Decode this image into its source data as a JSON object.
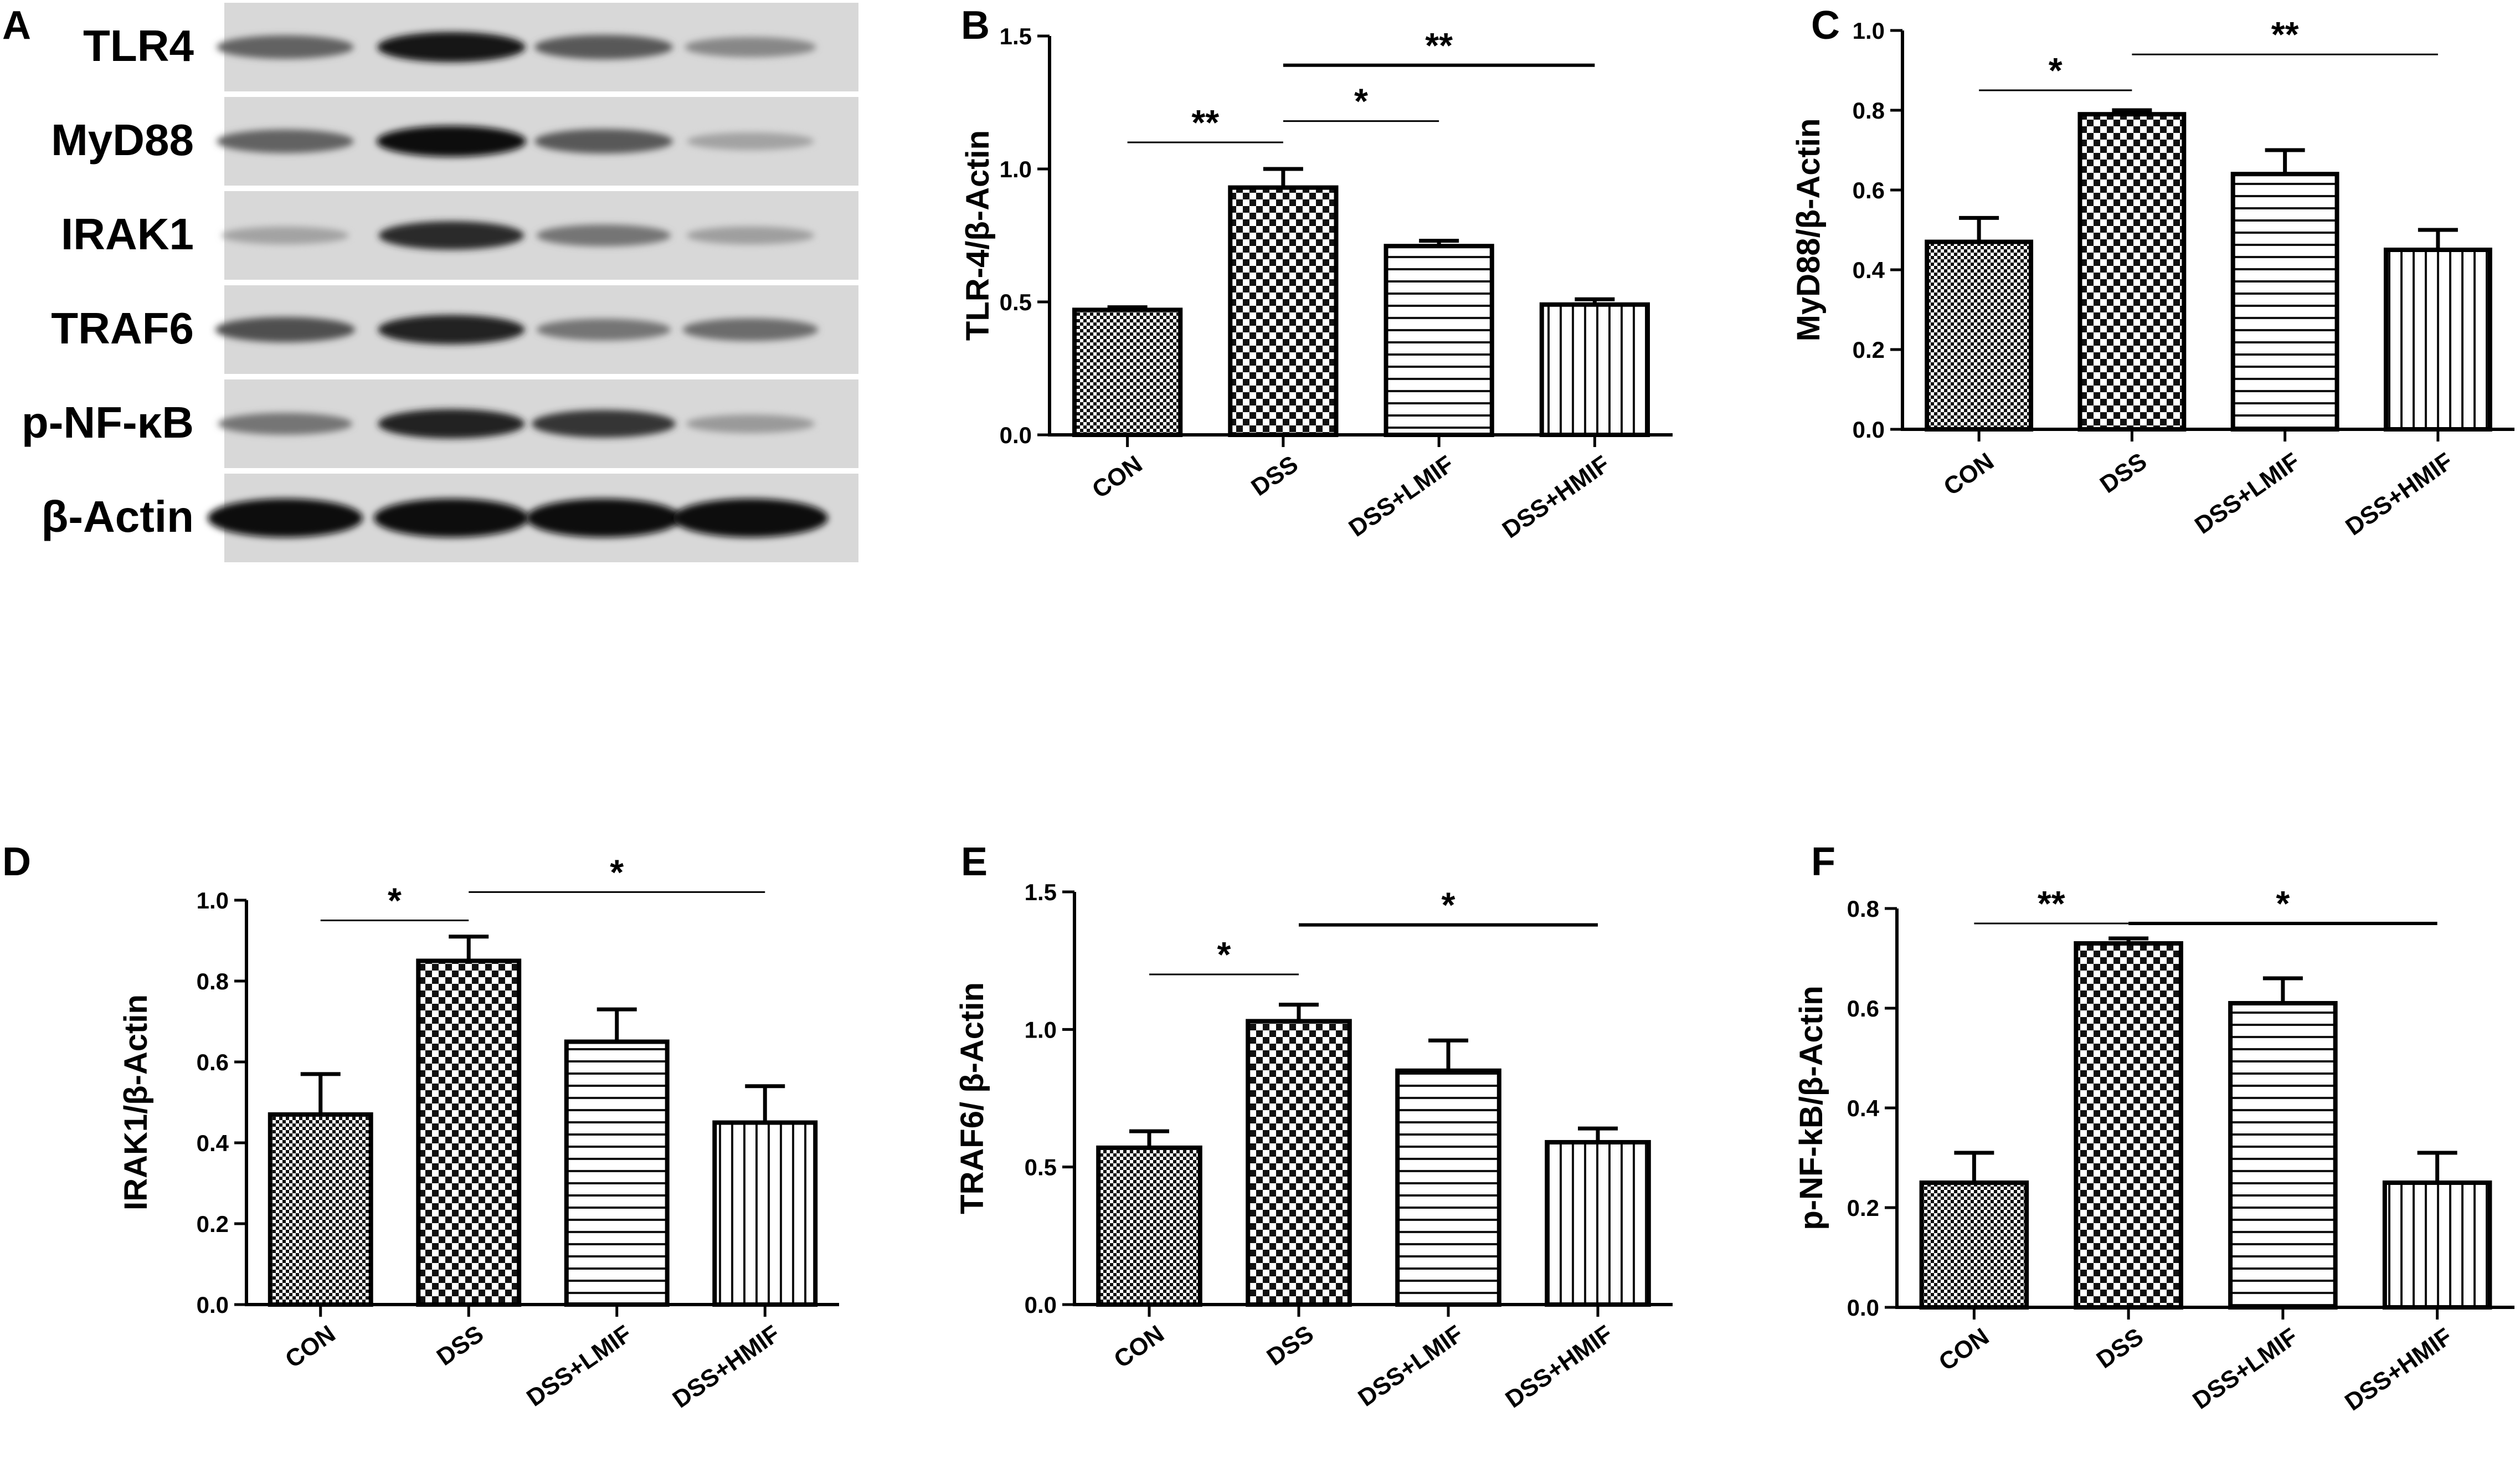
{
  "blot": {
    "panel_letter": "A",
    "rows": [
      {
        "label": "TLR4",
        "bands": [
          0.55,
          0.95,
          0.6,
          0.35
        ]
      },
      {
        "label": "MyD88",
        "bands": [
          0.55,
          1.0,
          0.6,
          0.2
        ]
      },
      {
        "label": "IRAK1",
        "bands": [
          0.2,
          0.85,
          0.45,
          0.22
        ]
      },
      {
        "label": "TRAF6",
        "bands": [
          0.65,
          0.9,
          0.45,
          0.5
        ]
      },
      {
        "label": "p-NF-κB",
        "bands": [
          0.45,
          0.9,
          0.8,
          0.25
        ]
      },
      {
        "label": "β-Actin",
        "bands": [
          1.0,
          1.0,
          1.0,
          1.0
        ]
      }
    ]
  },
  "chart_data": [
    {
      "panel": "B",
      "type": "bar",
      "categories": [
        "CON",
        "DSS",
        "DSS+LMIF",
        "DSS+HMIF"
      ],
      "values": [
        0.47,
        0.93,
        0.71,
        0.49
      ],
      "errors": [
        0.01,
        0.07,
        0.02,
        0.02
      ],
      "patterns": [
        "checker-fine",
        "checker",
        "horizontal",
        "vertical"
      ],
      "ylabel": "TLR-4/β-Actin",
      "ylim": [
        0,
        1.5
      ],
      "yticks": [
        "0.0",
        "0.5",
        "1.0",
        "1.5"
      ],
      "significance": [
        {
          "from": 0,
          "to": 1,
          "y": 1.1,
          "label": "**",
          "thick": false
        },
        {
          "from": 1,
          "to": 2,
          "y": 1.18,
          "label": "*",
          "thick": false
        },
        {
          "from": 1,
          "to": 3,
          "y": 1.39,
          "label": "**",
          "thick": true
        }
      ]
    },
    {
      "panel": "C",
      "type": "bar",
      "categories": [
        "CON",
        "DSS",
        "DSS+LMIF",
        "DSS+HMIF"
      ],
      "values": [
        0.47,
        0.79,
        0.64,
        0.45
      ],
      "errors": [
        0.06,
        0.01,
        0.06,
        0.05
      ],
      "patterns": [
        "checker-fine",
        "checker",
        "horizontal",
        "vertical"
      ],
      "ylabel": "MyD88/β-Actin",
      "ylim": [
        0,
        1.0
      ],
      "yticks": [
        "0.0",
        "0.2",
        "0.4",
        "0.6",
        "0.8",
        "1.0"
      ],
      "significance": [
        {
          "from": 0,
          "to": 1,
          "y": 0.85,
          "label": "*",
          "thick": false
        },
        {
          "from": 1,
          "to": 3,
          "y": 0.94,
          "label": "**",
          "thick": false
        }
      ]
    },
    {
      "panel": "D",
      "type": "bar",
      "categories": [
        "CON",
        "DSS",
        "DSS+LMIF",
        "DSS+HMIF"
      ],
      "values": [
        0.47,
        0.85,
        0.65,
        0.45
      ],
      "errors": [
        0.1,
        0.06,
        0.08,
        0.09
      ],
      "patterns": [
        "checker-fine",
        "checker",
        "horizontal",
        "vertical"
      ],
      "ylabel": "IRAK1/β-Actin",
      "ylim": [
        0,
        1.0
      ],
      "yticks": [
        "0.0",
        "0.2",
        "0.4",
        "0.6",
        "0.8",
        "1.0"
      ],
      "significance": [
        {
          "from": 0,
          "to": 1,
          "y": 0.95,
          "label": "*",
          "thick": false
        },
        {
          "from": 1,
          "to": 3,
          "y": 1.02,
          "label": "*",
          "thick": false
        }
      ]
    },
    {
      "panel": "E",
      "type": "bar",
      "categories": [
        "CON",
        "DSS",
        "DSS+LMIF",
        "DSS+HMIF"
      ],
      "values": [
        0.57,
        1.03,
        0.85,
        0.59
      ],
      "errors": [
        0.06,
        0.06,
        0.11,
        0.05
      ],
      "patterns": [
        "checker-fine",
        "checker",
        "horizontal",
        "vertical"
      ],
      "ylabel": "TRAF6/ β-Actin",
      "ylim": [
        0,
        1.5
      ],
      "yticks": [
        "0.0",
        "0.5",
        "1.0",
        "1.5"
      ],
      "significance": [
        {
          "from": 0,
          "to": 1,
          "y": 1.2,
          "label": "*",
          "thick": false
        },
        {
          "from": 1,
          "to": 3,
          "y": 1.38,
          "label": "*",
          "thick": true
        }
      ]
    },
    {
      "panel": "F",
      "type": "bar",
      "categories": [
        "CON",
        "DSS",
        "DSS+LMIF",
        "DSS+HMIF"
      ],
      "values": [
        0.25,
        0.73,
        0.61,
        0.25
      ],
      "errors": [
        0.06,
        0.01,
        0.05,
        0.06
      ],
      "patterns": [
        "checker-fine",
        "checker",
        "horizontal",
        "vertical"
      ],
      "ylabel": "p-NF-kB/β-Actin",
      "ylim": [
        0,
        0.8
      ],
      "yticks": [
        "0.0",
        "0.2",
        "0.4",
        "0.6",
        "0.8"
      ],
      "significance": [
        {
          "from": 0,
          "to": 1,
          "y": 0.77,
          "label": "**",
          "thick": false
        },
        {
          "from": 1,
          "to": 3,
          "y": 0.77,
          "label": "*",
          "thick": true
        }
      ]
    }
  ]
}
